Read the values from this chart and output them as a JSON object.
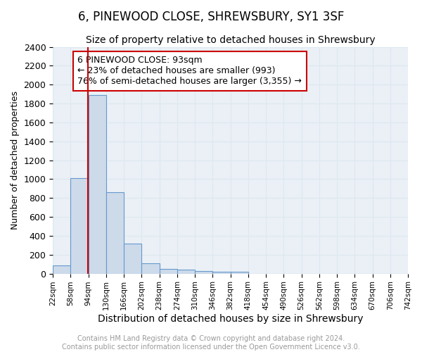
{
  "title": "6, PINEWOOD CLOSE, SHREWSBURY, SY1 3SF",
  "subtitle": "Size of property relative to detached houses in Shrewsbury",
  "xlabel": "Distribution of detached houses by size in Shrewsbury",
  "ylabel": "Number of detached properties",
  "bin_edges": [
    22,
    58,
    94,
    130,
    166,
    202,
    238,
    274,
    310,
    346,
    382,
    418,
    454,
    490,
    526,
    562,
    598,
    634,
    670,
    706,
    742
  ],
  "bar_heights": [
    90,
    1010,
    1890,
    860,
    320,
    110,
    50,
    45,
    30,
    20,
    20,
    0,
    0,
    0,
    0,
    0,
    0,
    0,
    0,
    0
  ],
  "bar_color": "#ccdaea",
  "bar_edgecolor": "#6699cc",
  "bar_linewidth": 0.8,
  "red_line_x": 93,
  "red_line_color": "#cc0000",
  "annotation_text": "6 PINEWOOD CLOSE: 93sqm\n← 23% of detached houses are smaller (993)\n76% of semi-detached houses are larger (3,355) →",
  "annotation_fontsize": 9,
  "annotation_box_color": "white",
  "annotation_box_edgecolor": "#cc0000",
  "ylim": [
    0,
    2400
  ],
  "yticks": [
    0,
    200,
    400,
    600,
    800,
    1000,
    1200,
    1400,
    1600,
    1800,
    2000,
    2200,
    2400
  ],
  "xtick_labels": [
    "22sqm",
    "58sqm",
    "94sqm",
    "130sqm",
    "166sqm",
    "202sqm",
    "238sqm",
    "274sqm",
    "310sqm",
    "346sqm",
    "382sqm",
    "418sqm",
    "454sqm",
    "490sqm",
    "526sqm",
    "562sqm",
    "598sqm",
    "634sqm",
    "670sqm",
    "706sqm",
    "742sqm"
  ],
  "grid_color": "#dde8f0",
  "bg_color": "#eaf0f6",
  "title_fontsize": 12,
  "subtitle_fontsize": 10,
  "xlabel_fontsize": 10,
  "ylabel_fontsize": 9,
  "footer_text": "Contains HM Land Registry data © Crown copyright and database right 2024.\nContains public sector information licensed under the Open Government Licence v3.0.",
  "footer_fontsize": 7,
  "footer_color": "#999999"
}
